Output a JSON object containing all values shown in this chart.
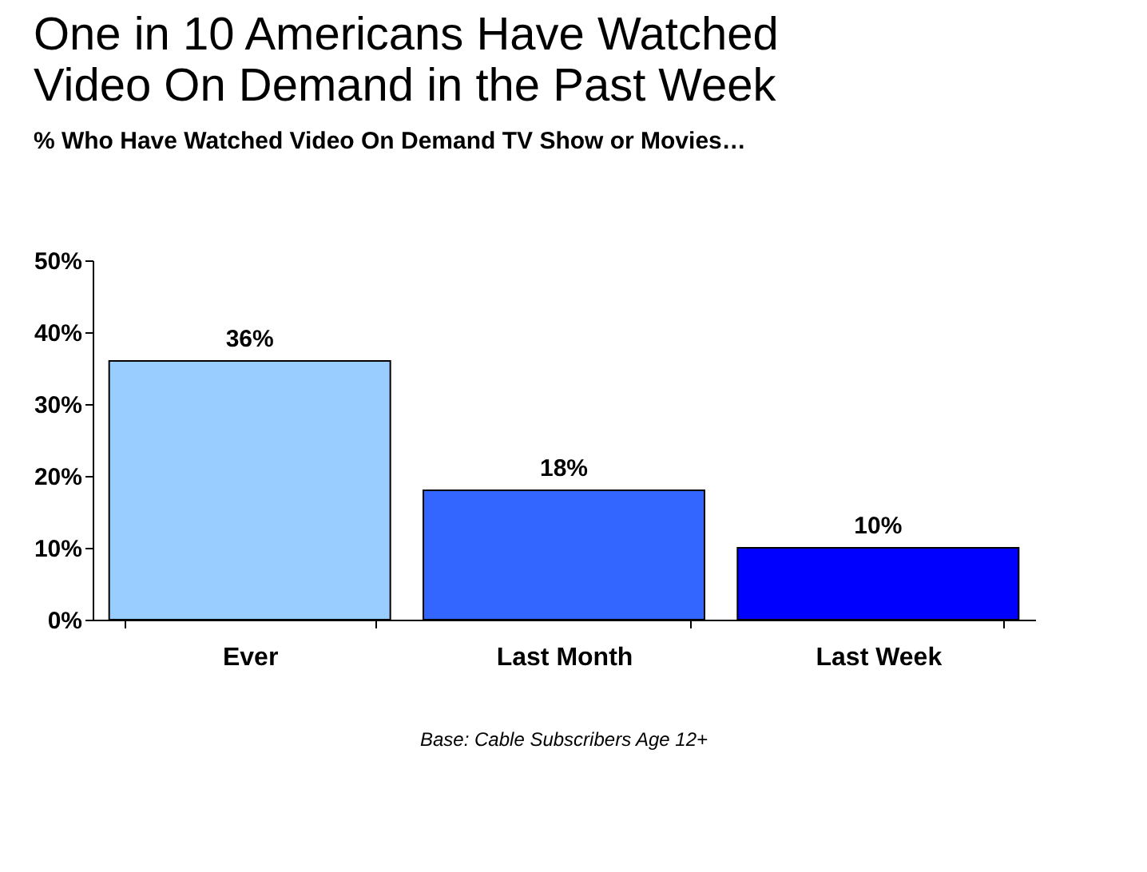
{
  "chart_data": {
    "type": "bar",
    "title": "One in 10 Americans Have Watched Video On Demand in the Past Week",
    "subtitle": "% Who Have Watched Video On Demand TV Show or Movies…",
    "categories": [
      "Ever",
      "Last Month",
      "Last Week"
    ],
    "values": [
      36,
      18,
      10
    ],
    "colors": [
      "#99ccff",
      "#3366ff",
      "#0000ff"
    ],
    "value_labels": [
      "36%",
      "18%",
      "10%"
    ],
    "ylim": [
      0,
      50
    ],
    "yticks": [
      {
        "value": 0,
        "label": "0%"
      },
      {
        "value": 10,
        "label": "10%"
      },
      {
        "value": 20,
        "label": "20%"
      },
      {
        "value": 30,
        "label": "30%"
      },
      {
        "value": 40,
        "label": "40%"
      },
      {
        "value": 50,
        "label": "50%"
      }
    ],
    "grid": false,
    "annotations": [
      "Base:  Cable Subscribers Age 12+"
    ]
  }
}
